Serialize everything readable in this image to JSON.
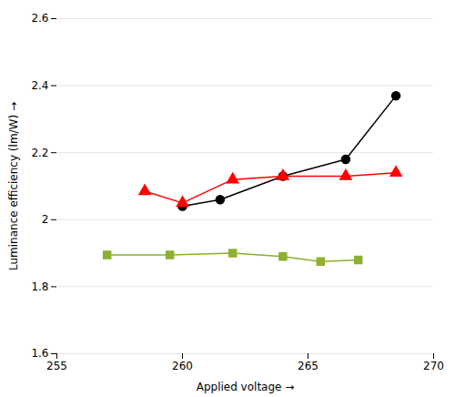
{
  "chart_data": {
    "type": "line",
    "xlabel": "Applied voltage",
    "ylabel": "Luminance efficiency (lm/W)",
    "series": [
      {
        "color": "#000000",
        "marker": "circle",
        "x": [
          260.0,
          261.5,
          264.0,
          266.5,
          268.5
        ],
        "values": [
          2.04,
          2.06,
          2.13,
          2.18,
          2.37
        ]
      },
      {
        "color": "#ff0000",
        "marker": "triangle",
        "x": [
          258.5,
          260.0,
          262.0,
          264.0,
          266.5,
          268.5
        ],
        "values": [
          2.085,
          2.05,
          2.12,
          2.13,
          2.13,
          2.14
        ]
      },
      {
        "color": "#8db030",
        "marker": "square",
        "x": [
          257.0,
          259.5,
          262.0,
          264.0,
          265.5,
          267.0
        ],
        "values": [
          1.895,
          1.895,
          1.9,
          1.89,
          1.875,
          1.88
        ]
      }
    ],
    "xlim": [
      255,
      270
    ],
    "ylim": [
      1.6,
      2.6
    ],
    "xticks": [
      255,
      260,
      265,
      270
    ],
    "yticks": [
      1.6,
      1.8,
      2,
      2.2,
      2.4,
      2.6
    ],
    "grid": "y"
  }
}
